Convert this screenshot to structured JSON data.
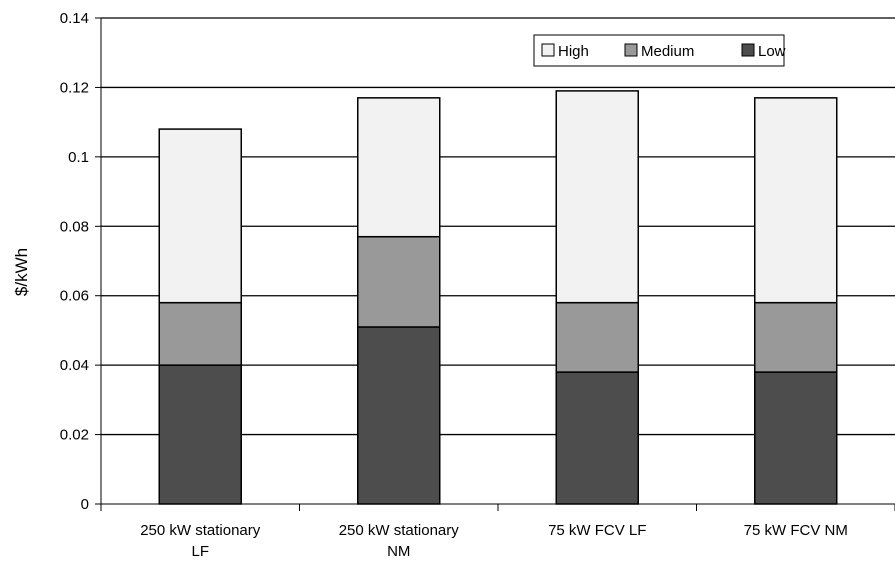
{
  "chart_data": {
    "type": "bar",
    "stacked": true,
    "categories": [
      [
        "250 kW stationary",
        "LF"
      ],
      [
        "250 kW stationary",
        "NM"
      ],
      [
        "75 kW FCV LF"
      ],
      [
        "75 kW FCV NM"
      ]
    ],
    "series": [
      {
        "name": "Low",
        "color": "#4d4d4d",
        "values": [
          0.04,
          0.051,
          0.038,
          0.038
        ]
      },
      {
        "name": "Medium",
        "color": "#999999",
        "values": [
          0.018,
          0.026,
          0.02,
          0.02
        ]
      },
      {
        "name": "High",
        "color": "#f2f2f2",
        "values": [
          0.05,
          0.04,
          0.061,
          0.059
        ]
      }
    ],
    "legend_order": [
      "High",
      "Medium",
      "Low"
    ],
    "legend_position": "top-right",
    "ylabel": "$/kWh",
    "xlabel": "",
    "ylim": [
      0,
      0.14
    ],
    "yticks": [
      "0",
      "0.02",
      "0.04",
      "0.06",
      "0.08",
      "0.1",
      "0.12",
      "0.14"
    ],
    "grid": true
  }
}
